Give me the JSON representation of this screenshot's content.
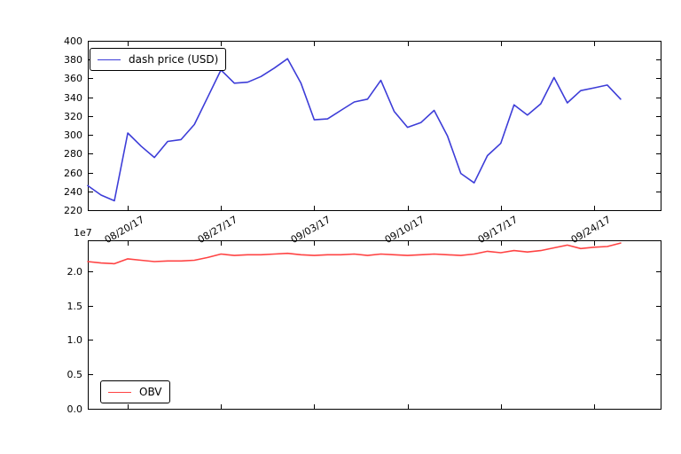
{
  "figure": {
    "background": "#ffffff",
    "axis_color": "#000000"
  },
  "chart_data": [
    {
      "type": "line",
      "title": "",
      "panel": "top",
      "legend": {
        "label": "dash price (USD)",
        "position": "upper left"
      },
      "grid": false,
      "ylim": [
        220,
        400
      ],
      "y_ticks": [
        220,
        240,
        260,
        280,
        300,
        320,
        340,
        360,
        380,
        400
      ],
      "x": {
        "range_days": [
          0,
          43
        ],
        "tick_day_indices": [
          3,
          10,
          17,
          24,
          31,
          38
        ],
        "tick_labels": [
          "08/20/17",
          "08/27/17",
          "09/03/17",
          "09/10/17",
          "09/17/17",
          "09/24/17"
        ],
        "dates": [
          "2017-08-17",
          "2017-08-18",
          "2017-08-19",
          "2017-08-20",
          "2017-08-21",
          "2017-08-22",
          "2017-08-23",
          "2017-08-24",
          "2017-08-25",
          "2017-08-26",
          "2017-08-27",
          "2017-08-28",
          "2017-08-29",
          "2017-08-30",
          "2017-08-31",
          "2017-09-01",
          "2017-09-02",
          "2017-09-03",
          "2017-09-04",
          "2017-09-05",
          "2017-09-06",
          "2017-09-07",
          "2017-09-08",
          "2017-09-09",
          "2017-09-10",
          "2017-09-11",
          "2017-09-12",
          "2017-09-13",
          "2017-09-14",
          "2017-09-15",
          "2017-09-16",
          "2017-09-17",
          "2017-09-18",
          "2017-09-19",
          "2017-09-20",
          "2017-09-21",
          "2017-09-22",
          "2017-09-23",
          "2017-09-24",
          "2017-09-25",
          "2017-09-26"
        ]
      },
      "series": [
        {
          "name": "dash price (USD)",
          "color": "#3d3dd8",
          "values": [
            246,
            236,
            230,
            302,
            288,
            276,
            293,
            295,
            311,
            340,
            369,
            355,
            356,
            362,
            371,
            381,
            355,
            316,
            317,
            326,
            335,
            338,
            358,
            325,
            308,
            313,
            326,
            299,
            259,
            249,
            278,
            291,
            332,
            321,
            333,
            361,
            334,
            347,
            350,
            353,
            338
          ]
        }
      ]
    },
    {
      "type": "line",
      "title": "",
      "panel": "bottom",
      "legend": {
        "label": "OBV",
        "position": "lower left"
      },
      "grid": false,
      "shared_x_with_top_panel": true,
      "offset_label": "1e7",
      "value_scale": 10000000,
      "ylim": [
        0,
        2.45
      ],
      "y_ticks": [
        "0.0",
        "0.5",
        "1.0",
        "1.5",
        "2.0"
      ],
      "series": [
        {
          "name": "OBV",
          "color": "#ff4343",
          "values": [
            2.14,
            2.12,
            2.11,
            2.18,
            2.16,
            2.14,
            2.15,
            2.15,
            2.16,
            2.2,
            2.25,
            2.23,
            2.24,
            2.24,
            2.25,
            2.26,
            2.24,
            2.23,
            2.24,
            2.24,
            2.25,
            2.23,
            2.25,
            2.24,
            2.23,
            2.24,
            2.25,
            2.24,
            2.23,
            2.25,
            2.29,
            2.27,
            2.3,
            2.28,
            2.3,
            2.34,
            2.38,
            2.33,
            2.35,
            2.36,
            2.41
          ]
        }
      ]
    }
  ]
}
